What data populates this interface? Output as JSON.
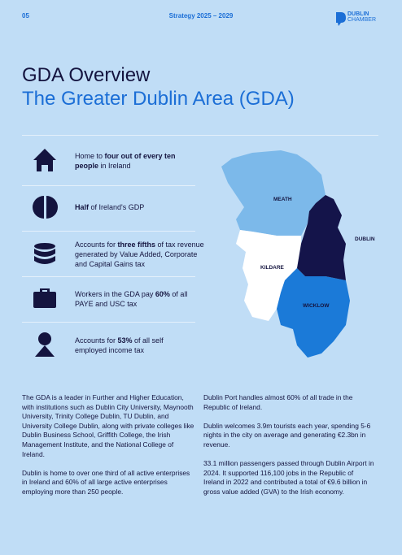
{
  "header": {
    "page_number": "05",
    "strategy": "Strategy 2025 – 2029",
    "logo": [
      "DUBLIN",
      "CHAMBER"
    ]
  },
  "title": "GDA Overview",
  "subtitle": "The Greater Dublin Area (GDA)",
  "stats": [
    {
      "parts": [
        {
          "text": "Home to "
        },
        {
          "text": "four out of every ten people",
          "bold": true
        },
        {
          "text": " in Ireland"
        }
      ]
    },
    {
      "parts": [
        {
          "text": "Half",
          "bold": true
        },
        {
          "text": " of Ireland's GDP"
        }
      ]
    },
    {
      "parts": [
        {
          "text": "Accounts for "
        },
        {
          "text": "three fifths",
          "bold": true
        },
        {
          "text": " of tax revenue generated by Value Added, Corporate and Capital Gains tax"
        }
      ]
    },
    {
      "parts": [
        {
          "text": "Workers in the GDA pay "
        },
        {
          "text": "60%",
          "bold": true
        },
        {
          "text": " of all PAYE and USC tax"
        }
      ]
    },
    {
      "parts": [
        {
          "text": "Accounts for "
        },
        {
          "text": "53%",
          "bold": true
        },
        {
          "text": " of all self employed income tax"
        }
      ]
    }
  ],
  "map_labels": {
    "meath": "MEATH",
    "dublin": "DUBLIN",
    "kildare": "KILDARE",
    "wicklow": "WICKLOW"
  },
  "columns": [
    [
      "The GDA is a leader in Further and Higher Education, with institutions such as Dublin City University, Maynooth University, Trinity College Dublin, TU Dublin, and University College Dublin, along with private colleges like Dublin Business School, Griffith College, the Irish Management Institute, and the National College of Ireland.",
      "Dublin is home to over one third of all active enterprises in Ireland and 60% of all large active enterprises employing more than 250 people."
    ],
    [
      "Dublin Port handles almost 60% of all trade in the Republic of Ireland.",
      "Dublin welcomes 3.9m tourists each year, spending 5-6 nights in the city on average and generating €2.3bn in revenue.",
      "33.1 million passengers passed through Dublin Airport in 2024. It supported 116,100 jobs in the Republic of Ireland in 2022 and contributed a total of €9.6 billion in gross value added (GVA) to the Irish economy."
    ]
  ]
}
